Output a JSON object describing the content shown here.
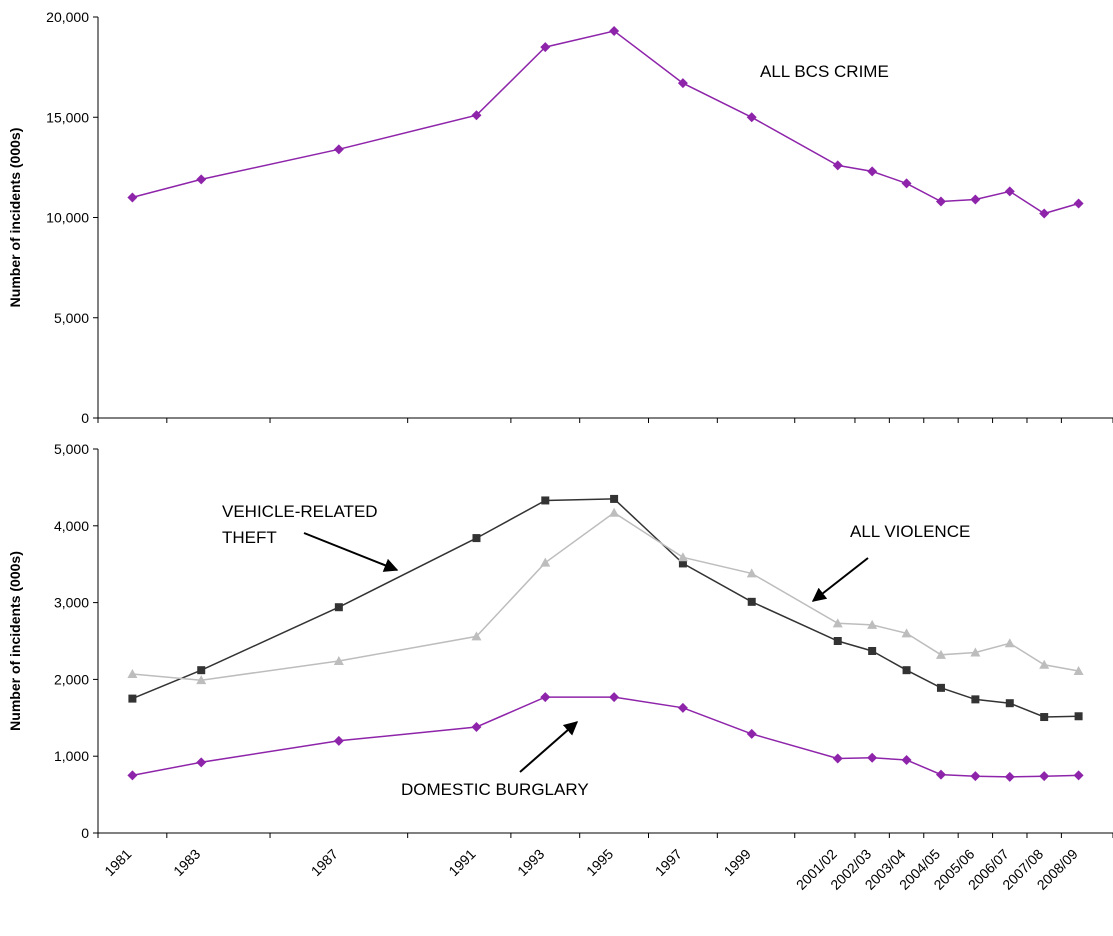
{
  "chart_data": [
    {
      "type": "line",
      "title": "",
      "xlabel": "",
      "ylabel": "Number of incidents (000s)",
      "ylim": [
        0,
        20000
      ],
      "yticks": [
        "0",
        "5,000",
        "10,000",
        "15,000",
        "20,000"
      ],
      "grid": false,
      "categories": [
        "1981",
        "1983",
        "1987",
        "1991",
        "1993",
        "1995",
        "1997",
        "1999",
        "2001/02",
        "2002/03",
        "2003/04",
        "2004/05",
        "2005/06",
        "2006/07",
        "2007/08",
        "2008/09"
      ],
      "x": [
        1981,
        1983,
        1987,
        1991,
        1993,
        1995,
        1997,
        1999,
        2001.5,
        2002.5,
        2003.5,
        2004.5,
        2005.5,
        2006.5,
        2007.5,
        2008.5
      ],
      "series": [
        {
          "name": "ALL BCS CRIME",
          "color": "#8E24AA",
          "marker": "diamond",
          "values": [
            11000,
            11900,
            13400,
            15100,
            18500,
            19300,
            16700,
            15000,
            12600,
            12300,
            11700,
            10800,
            10900,
            11300,
            10200,
            10700
          ]
        }
      ],
      "annotations": [
        {
          "text": "ALL BCS CRIME"
        }
      ]
    },
    {
      "type": "line",
      "title": "",
      "xlabel": "",
      "ylabel": "Number of incidents (000s)",
      "ylim": [
        0,
        5000
      ],
      "yticks": [
        "0",
        "1,000",
        "2,000",
        "3,000",
        "4,000",
        "5,000"
      ],
      "grid": false,
      "categories": [
        "1981",
        "1983",
        "1987",
        "1991",
        "1993",
        "1995",
        "1997",
        "1999",
        "2001/02",
        "2002/03",
        "2003/04",
        "2004/05",
        "2005/06",
        "2006/07",
        "2007/08",
        "2008/09"
      ],
      "x": [
        1981,
        1983,
        1987,
        1991,
        1993,
        1995,
        1997,
        1999,
        2001.5,
        2002.5,
        2003.5,
        2004.5,
        2005.5,
        2006.5,
        2007.5,
        2008.5
      ],
      "series": [
        {
          "name": "VEHICLE-RELATED THEFT",
          "color": "#333333",
          "marker": "square",
          "values": [
            1750,
            2120,
            2940,
            3840,
            4330,
            4350,
            3510,
            3010,
            2500,
            2370,
            2120,
            1890,
            1740,
            1690,
            1510,
            1520
          ]
        },
        {
          "name": "ALL VIOLENCE",
          "color": "#BDBDBD",
          "marker": "triangle",
          "values": [
            2070,
            1990,
            2240,
            2560,
            3520,
            4170,
            3590,
            3380,
            2730,
            2710,
            2600,
            2320,
            2350,
            2470,
            2190,
            2110
          ]
        },
        {
          "name": "DOMESTIC BURGLARY",
          "color": "#8E24AA",
          "marker": "diamond",
          "values": [
            750,
            920,
            1200,
            1380,
            1770,
            1770,
            1630,
            1290,
            970,
            980,
            950,
            760,
            740,
            730,
            740,
            750
          ]
        }
      ],
      "annotations": [
        {
          "text": "VEHICLE-RELATED THEFT",
          "lines": [
            "VEHICLE-RELATED",
            "THEFT"
          ]
        },
        {
          "text": "ALL VIOLENCE"
        },
        {
          "text": "DOMESTIC BURGLARY"
        }
      ]
    }
  ]
}
